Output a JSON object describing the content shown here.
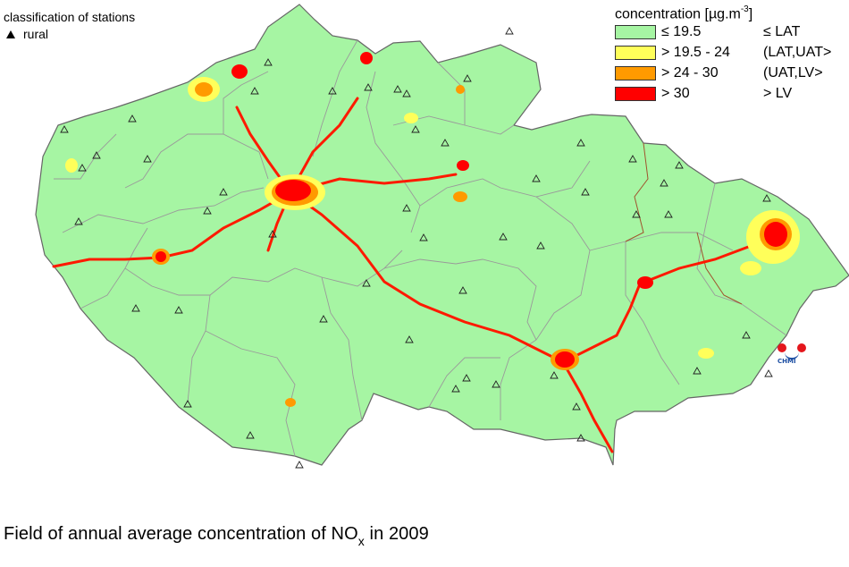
{
  "map": {
    "caption_main": "Field of annual average concentration of NO",
    "caption_sub": "x",
    "caption_tail": " in 2009"
  },
  "station_legend": {
    "title": "classification of stations",
    "items": [
      {
        "symbol": "triangle-icon",
        "label": "rural"
      }
    ]
  },
  "concentration_legend": {
    "title_main": "concentration [µg.m",
    "title_sup": "-3",
    "title_tail": "]",
    "classes": [
      {
        "range": "≤ 19.5",
        "code": "≤ LAT",
        "color": "#a6f5a3"
      },
      {
        "range": "> 19.5 - 24",
        "code": "(LAT,UAT>",
        "color": "#ffff5a"
      },
      {
        "range": "> 24 - 30",
        "code": "(UAT,LV>",
        "color": "#ff9a00"
      },
      {
        "range": "> 30",
        "code": "> LV",
        "color": "#ff0000"
      }
    ]
  },
  "colors": {
    "land": "#a6f5a3",
    "region_border": "#9a9a9a",
    "outer_border": "#666666",
    "yellow": "#ffff5a",
    "orange": "#ff9a00",
    "red": "#ff0000",
    "brown_border": "#a0522d"
  },
  "logo": {
    "text": "CHMI"
  }
}
